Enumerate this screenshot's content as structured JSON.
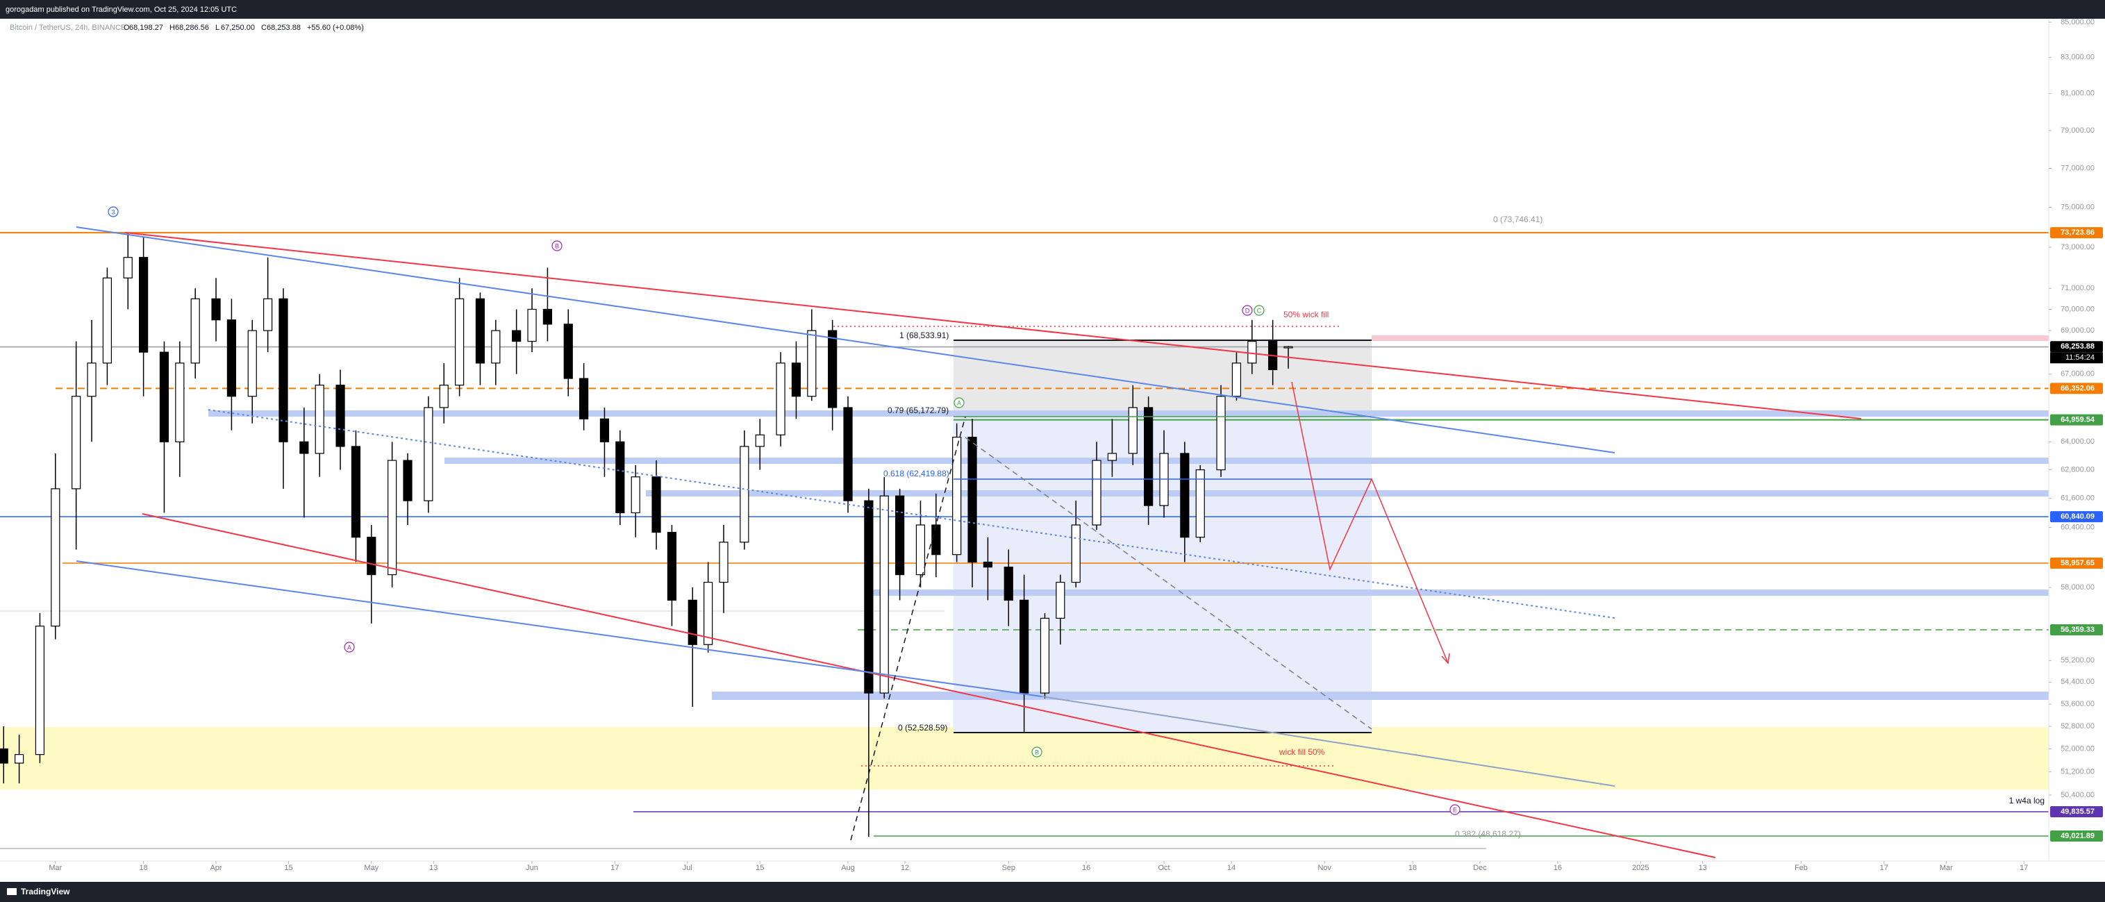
{
  "chart_data": {
    "type": "candlestick",
    "published": "gorogadam published on TradingView.com, Oct 25, 2024 12:05 UTC",
    "title": "Bitcoin / TetherUS, 24h, BINANCE",
    "legend_ohlc": [
      {
        "key": "O",
        "text": "68,198.27"
      },
      {
        "key": "H",
        "text": "68,286.56"
      },
      {
        "key": "L",
        "text": "67,250.00"
      },
      {
        "key": "C",
        "text": "68,253.88"
      }
    ],
    "change": "+55.60 (+0.08%)",
    "brand": "TradingView",
    "log_scale": true,
    "grid": false,
    "up_color": "#ffffff",
    "down_color": "#000000",
    "ylim": [
      48200,
      85200
    ],
    "yticks": [
      {
        "value": 85000,
        "label": "85,000.00"
      },
      {
        "value": 83000,
        "label": "83,000.00"
      },
      {
        "value": 81000,
        "label": "81,000.00"
      },
      {
        "value": 79000,
        "label": "79,000.00"
      },
      {
        "value": 77000,
        "label": "77,000.00"
      },
      {
        "value": 75000,
        "label": "75,000.00"
      },
      {
        "value": 73000,
        "label": "73,000.00"
      },
      {
        "value": 71000,
        "label": "71,000.00"
      },
      {
        "value": 70000,
        "label": "70,000.00"
      },
      {
        "value": 69000,
        "label": "69,000.00"
      },
      {
        "value": 67000,
        "label": "67,000.00"
      },
      {
        "value": 64000,
        "label": "64,000.00"
      },
      {
        "value": 62800,
        "label": "62,800.00"
      },
      {
        "value": 61600,
        "label": "61,600.00"
      },
      {
        "value": 60400,
        "label": "60,400.00"
      },
      {
        "value": 58000,
        "label": "58,000.00"
      },
      {
        "value": 55200,
        "label": "55,200.00"
      },
      {
        "value": 54400,
        "label": "54,400.00"
      },
      {
        "value": 53600,
        "label": "53,600.00"
      },
      {
        "value": 52800,
        "label": "52,800.00"
      },
      {
        "value": 52000,
        "label": "52,000.00"
      },
      {
        "value": 51200,
        "label": "51,200.00"
      },
      {
        "value": 50400,
        "label": "50,400.00"
      }
    ],
    "xlim": [
      50.3,
      445.8
    ],
    "xticks": [
      {
        "value": 61,
        "label": "Mar"
      },
      {
        "value": 78,
        "label": "18"
      },
      {
        "value": 92,
        "label": "Apr"
      },
      {
        "value": 106,
        "label": "15"
      },
      {
        "value": 122,
        "label": "May"
      },
      {
        "value": 134,
        "label": "13"
      },
      {
        "value": 153,
        "label": "Jun"
      },
      {
        "value": 169,
        "label": "17"
      },
      {
        "value": 183,
        "label": "Jul"
      },
      {
        "value": 197,
        "label": "15"
      },
      {
        "value": 214,
        "label": "Aug"
      },
      {
        "value": 225,
        "label": "12"
      },
      {
        "value": 245,
        "label": "Sep"
      },
      {
        "value": 260,
        "label": "16"
      },
      {
        "value": 275,
        "label": "Oct"
      },
      {
        "value": 288,
        "label": "14"
      },
      {
        "value": 306,
        "label": "Nov"
      },
      {
        "value": 323,
        "label": "18"
      },
      {
        "value": 336,
        "label": "Dec"
      },
      {
        "value": 351,
        "label": "16"
      },
      {
        "value": 367,
        "label": "2025"
      },
      {
        "value": 379,
        "label": "13"
      },
      {
        "value": 398,
        "label": "Feb"
      },
      {
        "value": 414,
        "label": "17"
      },
      {
        "value": 426,
        "label": "Mar"
      },
      {
        "value": 441,
        "label": "17"
      }
    ],
    "candles": [
      [
        51,
        52000,
        52800,
        50800,
        51500
      ],
      [
        54,
        51500,
        52500,
        50800,
        51800
      ],
      [
        58,
        51800,
        57000,
        51500,
        56500
      ],
      [
        61,
        56500,
        63500,
        56000,
        62000
      ],
      [
        65,
        62000,
        68500,
        59500,
        66000
      ],
      [
        68,
        66000,
        69500,
        64000,
        67500
      ],
      [
        71,
        67500,
        72000,
        66500,
        71500
      ],
      [
        75,
        71500,
        73700,
        70000,
        72500
      ],
      [
        78,
        72500,
        73500,
        66000,
        68000
      ],
      [
        82,
        68000,
        68500,
        61000,
        64000
      ],
      [
        85,
        64000,
        68500,
        62500,
        67500
      ],
      [
        88,
        67500,
        71000,
        66800,
        70500
      ],
      [
        92,
        70500,
        71500,
        68500,
        69500
      ],
      [
        95,
        69500,
        70500,
        64500,
        66000
      ],
      [
        99,
        66000,
        69500,
        64800,
        69000
      ],
      [
        102,
        69000,
        72500,
        68000,
        70500
      ],
      [
        105,
        70500,
        71000,
        62000,
        64000
      ],
      [
        109,
        64000,
        65500,
        60800,
        63500
      ],
      [
        112,
        63500,
        67000,
        62500,
        66500
      ],
      [
        116,
        66500,
        67200,
        62800,
        63800
      ],
      [
        119,
        63800,
        64500,
        59000,
        60000
      ],
      [
        122,
        60000,
        60500,
        56600,
        58500
      ],
      [
        126,
        58500,
        64000,
        58000,
        63200
      ],
      [
        129,
        63200,
        63500,
        60500,
        61500
      ],
      [
        133,
        61500,
        66000,
        61000,
        65500
      ],
      [
        136,
        65500,
        67500,
        64800,
        66500
      ],
      [
        139,
        66500,
        71500,
        66000,
        70500
      ],
      [
        143,
        70500,
        70800,
        66500,
        67500
      ],
      [
        146,
        67500,
        69500,
        66500,
        69000
      ],
      [
        150,
        69000,
        70000,
        67000,
        68500
      ],
      [
        153,
        68500,
        71000,
        68000,
        70000
      ],
      [
        156,
        70000,
        72000,
        68500,
        69300
      ],
      [
        160,
        69300,
        70000,
        66000,
        66800
      ],
      [
        163,
        66800,
        67500,
        64500,
        65000
      ],
      [
        167,
        65000,
        65500,
        62500,
        64000
      ],
      [
        170,
        64000,
        64500,
        60500,
        61000
      ],
      [
        173,
        61000,
        63000,
        60000,
        62500
      ],
      [
        177,
        62500,
        63200,
        59500,
        60200
      ],
      [
        180,
        60200,
        60500,
        56500,
        57500
      ],
      [
        184,
        57500,
        58000,
        53500,
        55800
      ],
      [
        187,
        55800,
        59000,
        55500,
        58200
      ],
      [
        190,
        58200,
        60500,
        57000,
        59800
      ],
      [
        194,
        59800,
        64500,
        59500,
        63800
      ],
      [
        197,
        63800,
        65000,
        62800,
        64300
      ],
      [
        201,
        64300,
        68000,
        63800,
        67500
      ],
      [
        204,
        67500,
        68500,
        65000,
        66000
      ],
      [
        207,
        66000,
        70000,
        65800,
        69000
      ],
      [
        211,
        69000,
        69500,
        64500,
        65500
      ],
      [
        214,
        65500,
        66000,
        61000,
        61500
      ],
      [
        218,
        61500,
        62000,
        49000,
        54000
      ],
      [
        221,
        54000,
        62500,
        53800,
        61700
      ],
      [
        224,
        61700,
        62000,
        57500,
        58500
      ],
      [
        228,
        58500,
        61500,
        58000,
        60500
      ],
      [
        231,
        60500,
        61800,
        58400,
        59300
      ],
      [
        235,
        59300,
        64800,
        59000,
        64200
      ],
      [
        238,
        64200,
        65000,
        58000,
        59000
      ],
      [
        241,
        59000,
        60000,
        57500,
        58800
      ],
      [
        245,
        58800,
        59500,
        56500,
        57500
      ],
      [
        248,
        57500,
        58500,
        52600,
        54000
      ],
      [
        252,
        54000,
        57000,
        53800,
        56800
      ],
      [
        255,
        56800,
        58500,
        55800,
        58200
      ],
      [
        258,
        58200,
        61500,
        58000,
        60500
      ],
      [
        262,
        60500,
        64000,
        60300,
        63200
      ],
      [
        265,
        63200,
        65000,
        62500,
        63500
      ],
      [
        269,
        63500,
        66500,
        63000,
        65500
      ],
      [
        272,
        65500,
        66000,
        60500,
        61300
      ],
      [
        275,
        61300,
        64500,
        60800,
        63500
      ],
      [
        279,
        63500,
        64000,
        59000,
        60000
      ],
      [
        282,
        60000,
        63000,
        59800,
        62800
      ],
      [
        286,
        62800,
        66500,
        62500,
        66000
      ],
      [
        289,
        66000,
        68000,
        65800,
        67500
      ],
      [
        292,
        67500,
        69500,
        67000,
        68500
      ],
      [
        296,
        68500,
        69500,
        66500,
        67200
      ],
      [
        299,
        68198.27,
        68286.56,
        67250,
        68253.88
      ]
    ],
    "price_tags": [
      {
        "value": 73723.86,
        "label": "73,723.86",
        "color": "#f57c00"
      },
      {
        "value": 68253.88,
        "label": "68,253.88",
        "color": "#000000",
        "countdown": "11:54:24"
      },
      {
        "value": 66352.06,
        "label": "66,352.06",
        "color": "#f57c00"
      },
      {
        "value": 64959.54,
        "label": "64,959.54",
        "color": "#43a047"
      },
      {
        "value": 60840.09,
        "label": "60,840.09",
        "color": "#2962ff"
      },
      {
        "value": 58957.65,
        "label": "58,957.65",
        "color": "#f57c00"
      },
      {
        "value": 56359.33,
        "label": "56,359.33",
        "color": "#43a047"
      },
      {
        "value": 49835.57,
        "label": "49,835.57",
        "color": "#5e35b1"
      },
      {
        "value": 49021.89,
        "label": "49,021.89",
        "color": "#43a047"
      }
    ],
    "annotations": [
      {
        "text": "1 (68,533.91)",
        "color": "#131722"
      },
      {
        "text": "0.79 (65,172.79)",
        "color": "#131722"
      },
      {
        "text": "0.618 (62,419.88)",
        "color": "#2962ff"
      },
      {
        "text": "0 (52,528.59)",
        "color": "#131722"
      },
      {
        "text": "0 (73,746.41)",
        "color": "#9598a1"
      },
      {
        "text": "0.382 (48,618.27)",
        "color": "#9598a1"
      },
      {
        "text": "50% wick fill",
        "color": "#f23645"
      },
      {
        "text": "wick fill 50%",
        "color": "#f23645"
      },
      {
        "text": "1 w4a log",
        "color": "#131722"
      }
    ],
    "wave_labels": [
      {
        "text": "3",
        "color": "#2962ff"
      },
      {
        "text": "B",
        "color": "#9c27b0"
      },
      {
        "text": "A",
        "color": "#9c27b0"
      },
      {
        "text": "D",
        "color": "#9c27b0"
      },
      {
        "text": "C",
        "color": "#43a047"
      },
      {
        "text": "A",
        "color": "#43a047"
      },
      {
        "text": "B",
        "color": "#43a047"
      },
      {
        "text": "E",
        "color": "#9c27b0"
      }
    ]
  }
}
